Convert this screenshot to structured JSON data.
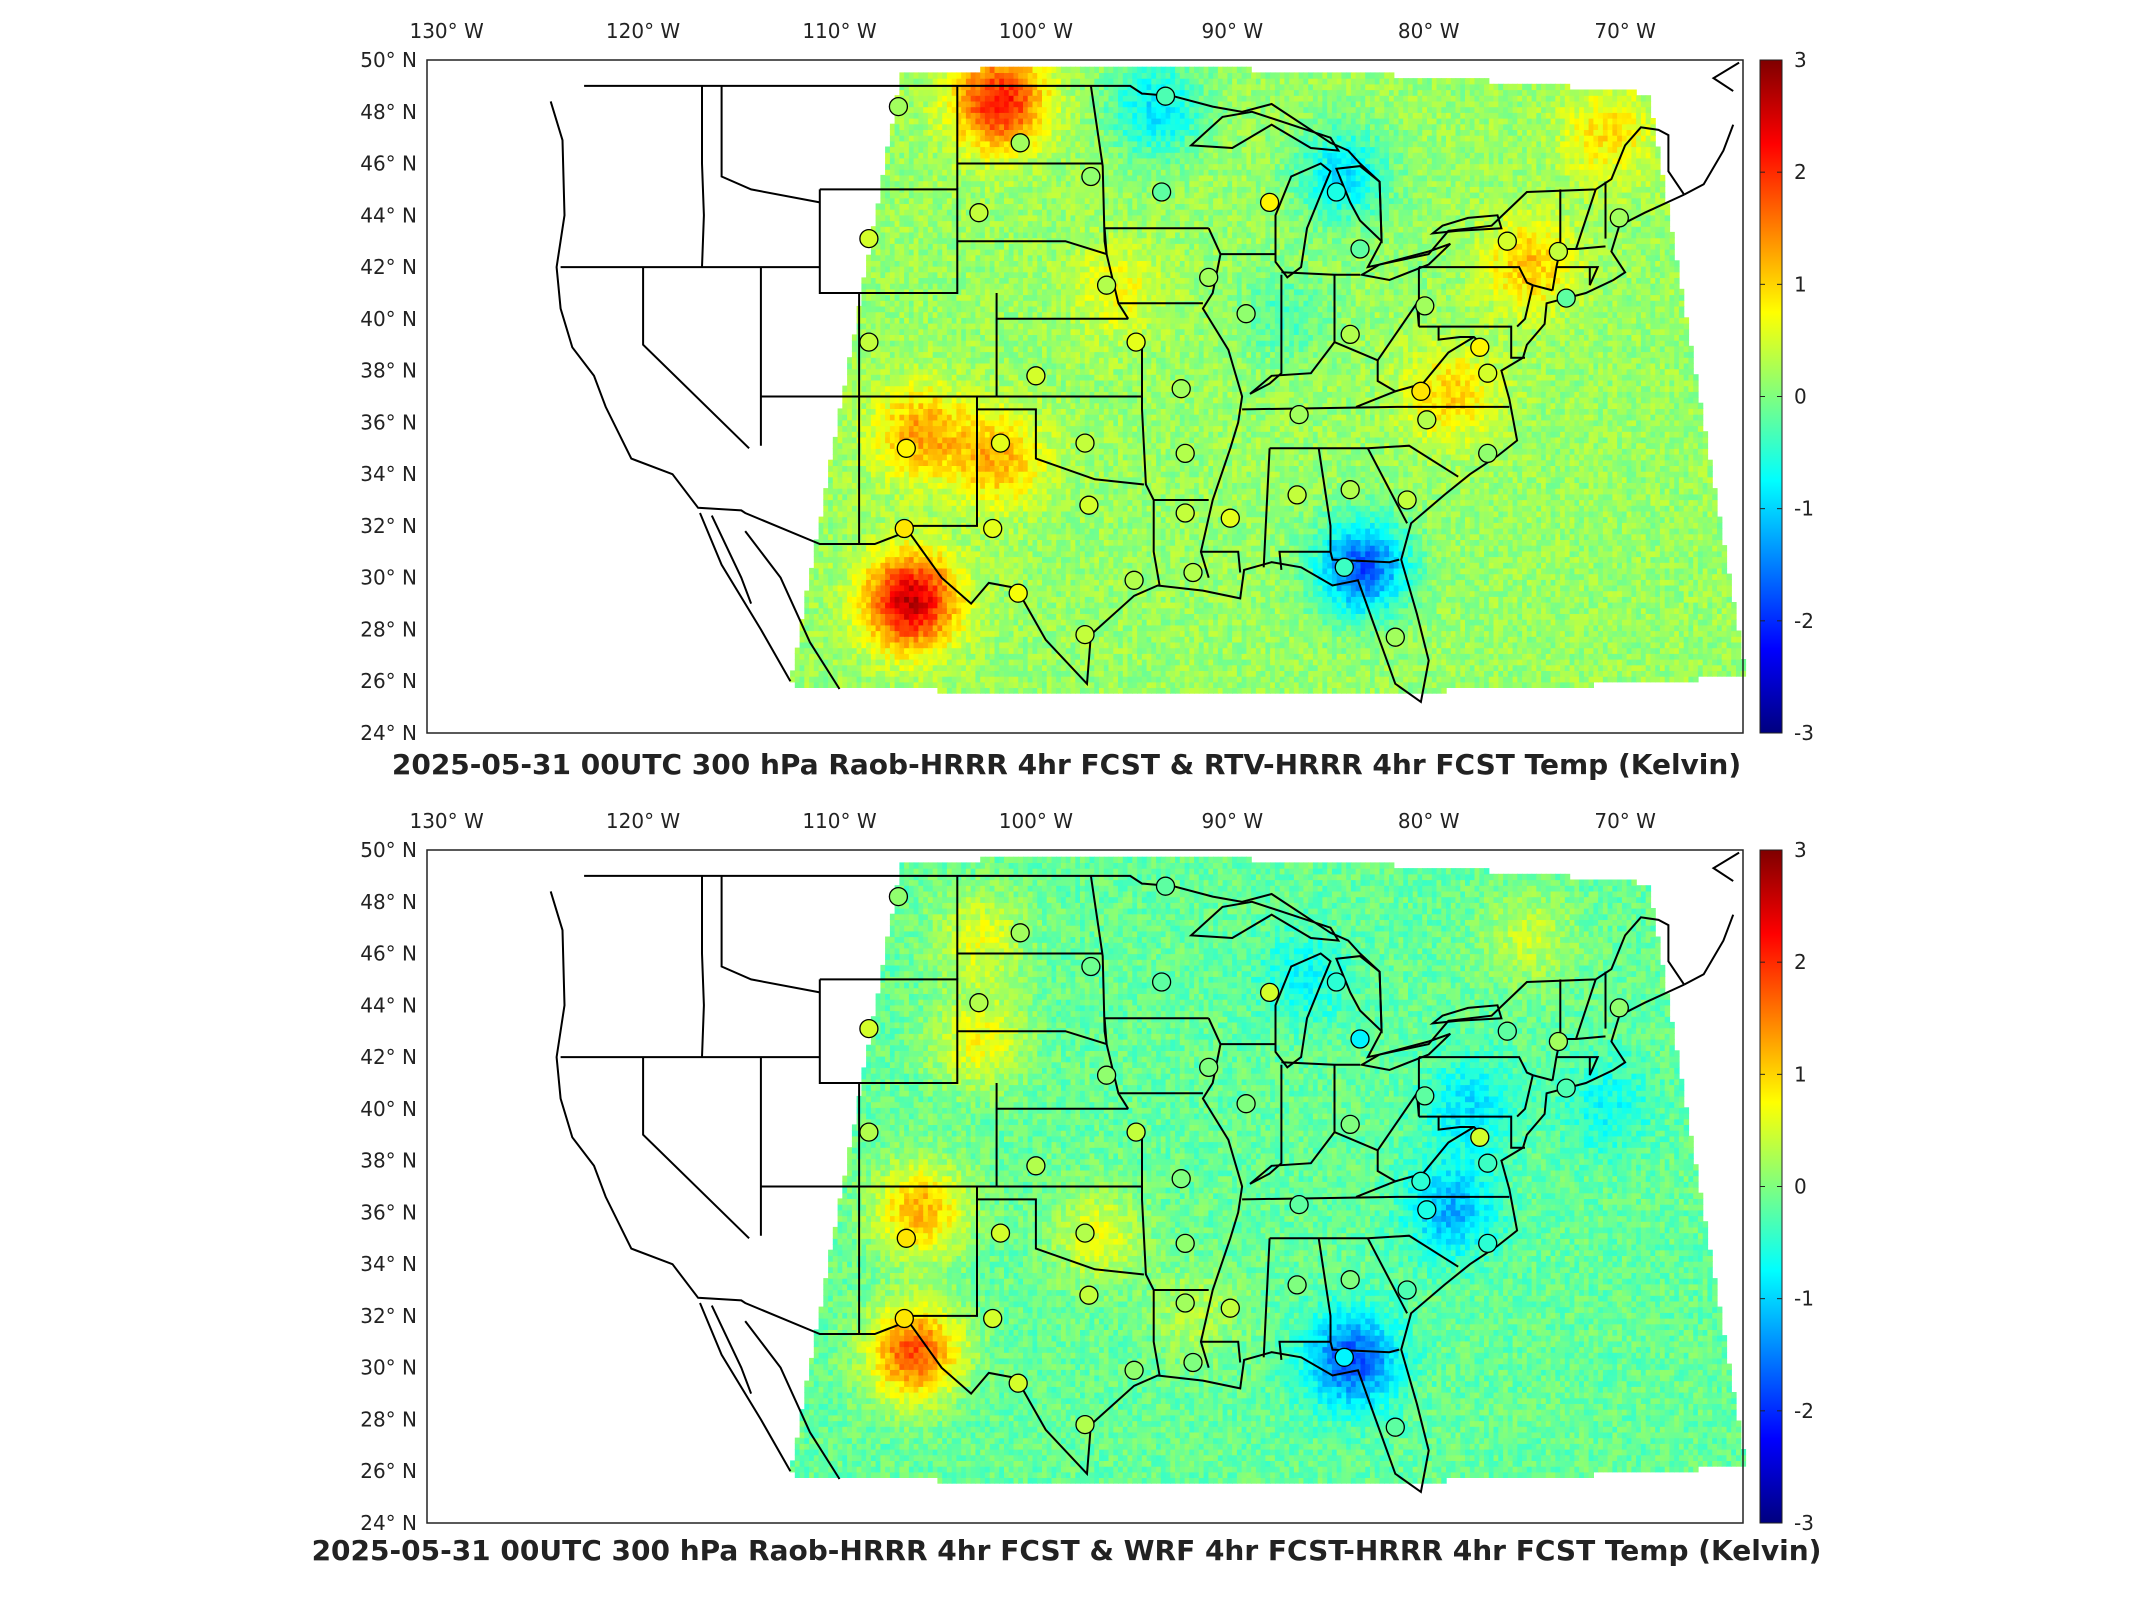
{
  "colormap": {
    "name": "jet",
    "stops": [
      "#00007f",
      "#0000ff",
      "#007fff",
      "#00ffff",
      "#7fff7f",
      "#ffff00",
      "#ff7f00",
      "#ff0000",
      "#7f0000"
    ]
  },
  "chart_data": [
    {
      "type": "heatmap",
      "title": "2025-05-31 00UTC 300 hPa Raob-HRRR 4hr FCST & RTV-HRRR 4hr FCST Temp (Kelvin)",
      "xticks": [
        "130° W",
        "120° W",
        "110° W",
        "100° W",
        "90° W",
        "80° W",
        "70° W"
      ],
      "yticks": [
        "50° N",
        "48° N",
        "46° N",
        "44° N",
        "42° N",
        "40° N",
        "38° N",
        "36° N",
        "34° N",
        "32° N",
        "30° N",
        "28° N",
        "26° N",
        "24° N"
      ],
      "xlim": [
        -131,
        -64
      ],
      "ylim": [
        24,
        50
      ],
      "colorbar": {
        "min": -3,
        "max": 3,
        "ticks": [
          "3",
          "2",
          "1",
          "0",
          "-1",
          "-2",
          "-3"
        ]
      },
      "field_hotspots": [
        {
          "lon": -106.5,
          "lat": 29.0,
          "value": 2.6
        },
        {
          "lon": -106.0,
          "lat": 35.5,
          "value": 1.3
        },
        {
          "lon": -102.0,
          "lat": 34.5,
          "value": 1.2
        },
        {
          "lon": -102.0,
          "lat": 48.3,
          "value": 2.2
        },
        {
          "lon": -94.0,
          "lat": 48.0,
          "value": -0.9
        },
        {
          "lon": -84.5,
          "lat": 45.5,
          "value": -0.9
        },
        {
          "lon": -83.5,
          "lat": 30.3,
          "value": -1.8
        },
        {
          "lon": -75.0,
          "lat": 42.0,
          "value": 1.1
        },
        {
          "lon": -79.0,
          "lat": 37.0,
          "value": 1.0
        },
        {
          "lon": -71.0,
          "lat": 47.0,
          "value": 0.9
        },
        {
          "lon": -96.0,
          "lat": 41.0,
          "value": 0.7
        },
        {
          "lon": -87.5,
          "lat": 40.0,
          "value": -0.3
        }
      ],
      "field_background": 0.15,
      "raob_sites": [
        {
          "lon": -107,
          "lat": 48.2,
          "value": 0.2
        },
        {
          "lon": -100.8,
          "lat": 46.8,
          "value": 0.2
        },
        {
          "lon": -93.4,
          "lat": 48.6,
          "value": -0.3
        },
        {
          "lon": -97.2,
          "lat": 45.5,
          "value": 0.1
        },
        {
          "lon": -93.6,
          "lat": 44.9,
          "value": -0.2
        },
        {
          "lon": -102.9,
          "lat": 44.1,
          "value": 0.4
        },
        {
          "lon": -108.5,
          "lat": 43.1,
          "value": 0.5
        },
        {
          "lon": -88.1,
          "lat": 44.5,
          "value": 0.8
        },
        {
          "lon": -84.7,
          "lat": 44.9,
          "value": -0.6
        },
        {
          "lon": -83.5,
          "lat": 42.7,
          "value": -0.2
        },
        {
          "lon": -91.2,
          "lat": 41.6,
          "value": 0.2
        },
        {
          "lon": -96.4,
          "lat": 41.3,
          "value": 0.3
        },
        {
          "lon": -89.3,
          "lat": 40.2,
          "value": 0.1
        },
        {
          "lon": -84.0,
          "lat": 39.4,
          "value": 0.3
        },
        {
          "lon": -80.2,
          "lat": 40.5,
          "value": 0.2
        },
        {
          "lon": -76.0,
          "lat": 43.0,
          "value": 0.5
        },
        {
          "lon": -73.4,
          "lat": 42.6,
          "value": 0.4
        },
        {
          "lon": -70.3,
          "lat": 43.9,
          "value": 0.2
        },
        {
          "lon": -73.0,
          "lat": 40.8,
          "value": -0.2
        },
        {
          "lon": -77.4,
          "lat": 38.9,
          "value": 0.8
        },
        {
          "lon": -77.0,
          "lat": 37.9,
          "value": 0.5
        },
        {
          "lon": -80.4,
          "lat": 37.2,
          "value": 0.9
        },
        {
          "lon": -80.1,
          "lat": 36.1,
          "value": 0.3
        },
        {
          "lon": -77.0,
          "lat": 34.8,
          "value": 0.1
        },
        {
          "lon": -81.1,
          "lat": 33.0,
          "value": 0.4
        },
        {
          "lon": -84.0,
          "lat": 33.4,
          "value": 0.3
        },
        {
          "lon": -86.7,
          "lat": 33.2,
          "value": 0.4
        },
        {
          "lon": -86.6,
          "lat": 36.3,
          "value": 0.2
        },
        {
          "lon": -90.1,
          "lat": 32.3,
          "value": 0.6
        },
        {
          "lon": -92.4,
          "lat": 32.5,
          "value": 0.4
        },
        {
          "lon": -92.4,
          "lat": 34.8,
          "value": 0.3
        },
        {
          "lon": -92.6,
          "lat": 37.3,
          "value": 0.2
        },
        {
          "lon": -94.9,
          "lat": 39.1,
          "value": 0.6
        },
        {
          "lon": -100.0,
          "lat": 37.8,
          "value": 0.5
        },
        {
          "lon": -97.5,
          "lat": 35.2,
          "value": 0.4
        },
        {
          "lon": -101.8,
          "lat": 35.2,
          "value": 0.6
        },
        {
          "lon": -97.3,
          "lat": 32.8,
          "value": 0.5
        },
        {
          "lon": -102.2,
          "lat": 31.9,
          "value": 0.6
        },
        {
          "lon": -106.7,
          "lat": 31.9,
          "value": 0.9
        },
        {
          "lon": -106.6,
          "lat": 35.0,
          "value": 0.8
        },
        {
          "lon": -108.5,
          "lat": 39.1,
          "value": 0.4
        },
        {
          "lon": -100.9,
          "lat": 29.4,
          "value": 0.7
        },
        {
          "lon": -97.5,
          "lat": 27.8,
          "value": 0.4
        },
        {
          "lon": -95.0,
          "lat": 29.9,
          "value": 0.3
        },
        {
          "lon": -92.0,
          "lat": 30.2,
          "value": 0.3
        },
        {
          "lon": -84.3,
          "lat": 30.4,
          "value": -0.4
        },
        {
          "lon": -81.7,
          "lat": 27.7,
          "value": 0.2
        }
      ]
    },
    {
      "type": "heatmap",
      "title": "2025-05-31 00UTC 300 hPa Raob-HRRR 4hr FCST & WRF 4hr FCST-HRRR 4hr FCST Temp (Kelvin)",
      "xticks": [
        "130° W",
        "120° W",
        "110° W",
        "100° W",
        "90° W",
        "80° W",
        "70° W"
      ],
      "yticks": [
        "50° N",
        "48° N",
        "46° N",
        "44° N",
        "42° N",
        "40° N",
        "38° N",
        "36° N",
        "34° N",
        "32° N",
        "30° N",
        "28° N",
        "26° N",
        "24° N"
      ],
      "xlim": [
        -131,
        -64
      ],
      "ylim": [
        24,
        50
      ],
      "colorbar": {
        "min": -3,
        "max": 3,
        "ticks": [
          "3",
          "2",
          "1",
          "0",
          "-1",
          "-2",
          "-3"
        ]
      },
      "field_hotspots": [
        {
          "lon": -106.3,
          "lat": 30.5,
          "value": 1.8
        },
        {
          "lon": -106.0,
          "lat": 36.0,
          "value": 1.2
        },
        {
          "lon": -103.0,
          "lat": 42.5,
          "value": 0.7
        },
        {
          "lon": -103.0,
          "lat": 46.5,
          "value": 0.6
        },
        {
          "lon": -97.0,
          "lat": 35.0,
          "value": 0.6
        },
        {
          "lon": -79.0,
          "lat": 36.0,
          "value": -1.2
        },
        {
          "lon": -84.0,
          "lat": 30.2,
          "value": -1.8
        },
        {
          "lon": -78.0,
          "lat": 40.0,
          "value": -0.9
        },
        {
          "lon": -71.0,
          "lat": 40.0,
          "value": -0.7
        },
        {
          "lon": -86.5,
          "lat": 45.0,
          "value": -0.7
        },
        {
          "lon": -75.0,
          "lat": 46.5,
          "value": 0.4
        },
        {
          "lon": -92.0,
          "lat": 32.0,
          "value": 0.3
        }
      ],
      "field_background": -0.15,
      "raob_sites": [
        {
          "lon": -107,
          "lat": 48.2,
          "value": 0.1
        },
        {
          "lon": -100.8,
          "lat": 46.8,
          "value": 0.2
        },
        {
          "lon": -93.4,
          "lat": 48.6,
          "value": -0.2
        },
        {
          "lon": -97.2,
          "lat": 45.5,
          "value": -0.1
        },
        {
          "lon": -93.6,
          "lat": 44.9,
          "value": -0.2
        },
        {
          "lon": -102.9,
          "lat": 44.1,
          "value": 0.3
        },
        {
          "lon": -108.5,
          "lat": 43.1,
          "value": 0.5
        },
        {
          "lon": -88.1,
          "lat": 44.5,
          "value": 0.5
        },
        {
          "lon": -84.7,
          "lat": 44.9,
          "value": -0.5
        },
        {
          "lon": -83.5,
          "lat": 42.7,
          "value": -0.8
        },
        {
          "lon": -91.2,
          "lat": 41.6,
          "value": 0.0
        },
        {
          "lon": -96.4,
          "lat": 41.3,
          "value": 0.1
        },
        {
          "lon": -89.3,
          "lat": 40.2,
          "value": 0.0
        },
        {
          "lon": -84.0,
          "lat": 39.4,
          "value": 0.0
        },
        {
          "lon": -80.2,
          "lat": 40.5,
          "value": -0.2
        },
        {
          "lon": -76.0,
          "lat": 43.0,
          "value": -0.2
        },
        {
          "lon": -73.4,
          "lat": 42.6,
          "value": 0.2
        },
        {
          "lon": -70.3,
          "lat": 43.9,
          "value": 0.1
        },
        {
          "lon": -73.0,
          "lat": 40.8,
          "value": -0.3
        },
        {
          "lon": -77.4,
          "lat": 38.9,
          "value": 0.5
        },
        {
          "lon": -77.0,
          "lat": 37.9,
          "value": -0.4
        },
        {
          "lon": -80.4,
          "lat": 37.2,
          "value": -0.5
        },
        {
          "lon": -80.1,
          "lat": 36.1,
          "value": -0.6
        },
        {
          "lon": -77.0,
          "lat": 34.8,
          "value": -0.5
        },
        {
          "lon": -81.1,
          "lat": 33.0,
          "value": -0.3
        },
        {
          "lon": -84.0,
          "lat": 33.4,
          "value": 0.0
        },
        {
          "lon": -86.7,
          "lat": 33.2,
          "value": 0.0
        },
        {
          "lon": -86.6,
          "lat": 36.3,
          "value": -0.2
        },
        {
          "lon": -90.1,
          "lat": 32.3,
          "value": 0.4
        },
        {
          "lon": -92.4,
          "lat": 32.5,
          "value": 0.2
        },
        {
          "lon": -92.4,
          "lat": 34.8,
          "value": 0.1
        },
        {
          "lon": -92.6,
          "lat": 37.3,
          "value": 0.0
        },
        {
          "lon": -94.9,
          "lat": 39.1,
          "value": 0.4
        },
        {
          "lon": -100.0,
          "lat": 37.8,
          "value": 0.3
        },
        {
          "lon": -97.5,
          "lat": 35.2,
          "value": 0.3
        },
        {
          "lon": -101.8,
          "lat": 35.2,
          "value": 0.5
        },
        {
          "lon": -97.3,
          "lat": 32.8,
          "value": 0.4
        },
        {
          "lon": -102.2,
          "lat": 31.9,
          "value": 0.5
        },
        {
          "lon": -106.7,
          "lat": 31.9,
          "value": 0.9
        },
        {
          "lon": -106.6,
          "lat": 35.0,
          "value": 0.9
        },
        {
          "lon": -108.5,
          "lat": 39.1,
          "value": 0.3
        },
        {
          "lon": -100.9,
          "lat": 29.4,
          "value": 0.5
        },
        {
          "lon": -97.5,
          "lat": 27.8,
          "value": 0.3
        },
        {
          "lon": -95.0,
          "lat": 29.9,
          "value": 0.1
        },
        {
          "lon": -92.0,
          "lat": 30.2,
          "value": 0.0
        },
        {
          "lon": -84.3,
          "lat": 30.4,
          "value": -0.8
        },
        {
          "lon": -81.7,
          "lat": 27.7,
          "value": -0.2
        }
      ]
    }
  ]
}
